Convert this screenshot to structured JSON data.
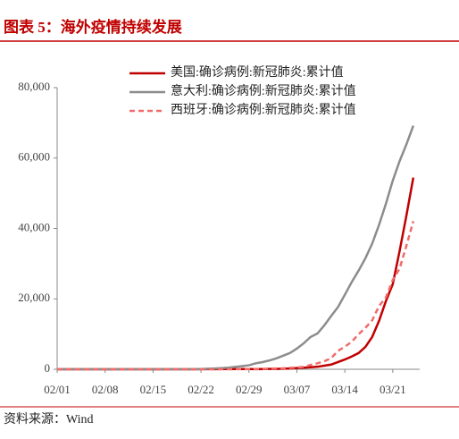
{
  "chart_data": {
    "type": "line",
    "title": "图表 5：海外疫情持续发展",
    "source": "资料来源：Wind",
    "categories": [
      "02/01",
      null,
      null,
      null,
      null,
      null,
      null,
      "02/08",
      null,
      null,
      null,
      null,
      null,
      null,
      "02/15",
      null,
      null,
      null,
      null,
      null,
      null,
      "02/22",
      null,
      null,
      null,
      null,
      null,
      null,
      "02/29",
      null,
      null,
      null,
      null,
      null,
      null,
      "03/07",
      null,
      null,
      null,
      null,
      null,
      null,
      "03/14",
      null,
      null,
      null,
      null,
      null,
      null,
      "03/21",
      null,
      null,
      null
    ],
    "series": [
      {
        "name": "美国:确诊病例:新冠肺炎:累计值",
        "color": "#c00000",
        "dash": false,
        "values": [
          8,
          8,
          11,
          11,
          11,
          11,
          11,
          11,
          11,
          12,
          12,
          12,
          12,
          12,
          13,
          13,
          15,
          15,
          15,
          15,
          15,
          35,
          35,
          35,
          53,
          53,
          59,
          60,
          62,
          30,
          53,
          80,
          106,
          161,
          233,
          338,
          445,
          572,
          717,
          1010,
          1327,
          2046,
          2770,
          3613,
          4596,
          6344,
          9197,
          13779,
          19367,
          24192,
          33592,
          43734,
          54453
        ]
      },
      {
        "name": "意大利:确诊病例:新冠肺炎:累计值",
        "color": "#8c8c8c",
        "dash": false,
        "values": [
          2,
          2,
          2,
          2,
          2,
          2,
          3,
          3,
          3,
          3,
          3,
          3,
          3,
          3,
          3,
          3,
          3,
          3,
          3,
          3,
          20,
          79,
          155,
          229,
          322,
          453,
          655,
          888,
          1128,
          1694,
          2036,
          2502,
          3089,
          3858,
          4636,
          5883,
          7375,
          9172,
          10149,
          12462,
          15113,
          17660,
          21157,
          24747,
          27980,
          31506,
          35713,
          41035,
          47021,
          53578,
          59138,
          63927,
          69176
        ]
      },
      {
        "name": "西班牙:确诊病例:新冠肺炎:累计值",
        "color": "#f26b6b",
        "dash": true,
        "values": [
          1,
          1,
          1,
          1,
          1,
          1,
          1,
          1,
          1,
          2,
          2,
          2,
          2,
          2,
          2,
          2,
          2,
          2,
          2,
          2,
          2,
          2,
          2,
          2,
          6,
          13,
          15,
          32,
          45,
          84,
          120,
          165,
          228,
          282,
          401,
          525,
          674,
          1231,
          1695,
          2277,
          3146,
          5232,
          6391,
          7798,
          9942,
          11748,
          13910,
          17963,
          20410,
          25374,
          28603,
          35136,
          42058
        ]
      }
    ],
    "ylim": [
      0,
      80000
    ],
    "yticks": [
      0,
      {
        "value": 20000,
        "label": "20,000"
      },
      {
        "value": 40000,
        "label": "40,000"
      },
      {
        "value": 60000,
        "label": "60,000"
      },
      {
        "value": 80000,
        "label": "80,000"
      }
    ],
    "legend": "top-right"
  }
}
